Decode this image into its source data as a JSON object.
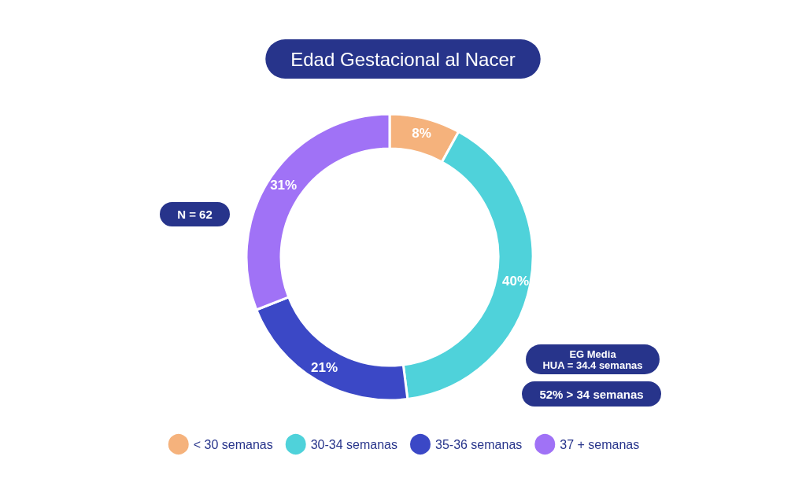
{
  "chart_data": {
    "type": "donut",
    "title": "Edad Gestacional al Nacer",
    "categories": [
      "< 30 semanas",
      "30-34 semanas",
      "35-36 semanas",
      "37 + semanas"
    ],
    "values": [
      8,
      40,
      21,
      31
    ],
    "colors": [
      "#f5b27c",
      "#4fd2da",
      "#3b48c6",
      "#a072f6"
    ],
    "value_labels": [
      "8%",
      "40%",
      "21%",
      "31%"
    ],
    "legend": "bottom",
    "annotations": [
      "N = 62",
      "EG Media\nHUA = 34.4 semanas",
      "52% > 34 semanas"
    ]
  }
}
